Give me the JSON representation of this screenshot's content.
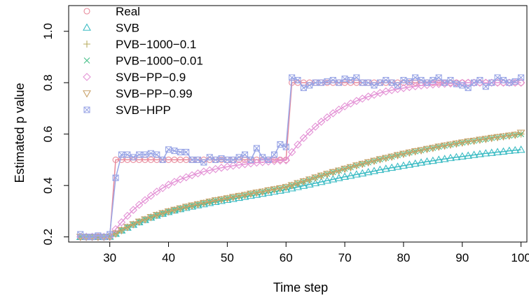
{
  "chart_data": {
    "type": "line",
    "title": "",
    "xlabel": "Time step",
    "ylabel": "Estimated p value",
    "xlim": [
      23,
      101
    ],
    "ylim": [
      0.18,
      1.1
    ],
    "xticks": [
      30,
      40,
      50,
      60,
      70,
      80,
      90,
      100
    ],
    "yticks": [
      0.2,
      0.4,
      0.6,
      0.8,
      1.0
    ],
    "ytick_labels": [
      "0.2",
      "0.4",
      "0.6",
      "0.8",
      "1.0"
    ],
    "grid": false,
    "legend_position": "top-left",
    "x": [
      25,
      26,
      27,
      28,
      29,
      30,
      31,
      32,
      33,
      34,
      35,
      36,
      37,
      38,
      39,
      40,
      41,
      42,
      43,
      44,
      45,
      46,
      47,
      48,
      49,
      50,
      51,
      52,
      53,
      54,
      55,
      56,
      57,
      58,
      59,
      60,
      61,
      62,
      63,
      64,
      65,
      66,
      67,
      68,
      69,
      70,
      71,
      72,
      73,
      74,
      75,
      76,
      77,
      78,
      79,
      80,
      81,
      82,
      83,
      84,
      85,
      86,
      87,
      88,
      89,
      90,
      91,
      92,
      93,
      94,
      95,
      96,
      97,
      98,
      99,
      100
    ],
    "series": [
      {
        "name": "Real",
        "marker": "circle",
        "color": "#e8899a",
        "values": [
          0.2,
          0.2,
          0.2,
          0.2,
          0.2,
          0.2,
          0.5,
          0.5,
          0.5,
          0.5,
          0.5,
          0.5,
          0.5,
          0.5,
          0.5,
          0.5,
          0.5,
          0.5,
          0.5,
          0.5,
          0.5,
          0.5,
          0.5,
          0.5,
          0.5,
          0.5,
          0.5,
          0.5,
          0.5,
          0.5,
          0.5,
          0.5,
          0.5,
          0.5,
          0.5,
          0.5,
          0.8,
          0.8,
          0.8,
          0.8,
          0.8,
          0.8,
          0.8,
          0.8,
          0.8,
          0.8,
          0.8,
          0.8,
          0.8,
          0.8,
          0.8,
          0.8,
          0.8,
          0.8,
          0.8,
          0.8,
          0.8,
          0.8,
          0.8,
          0.8,
          0.8,
          0.8,
          0.8,
          0.8,
          0.8,
          0.8,
          0.8,
          0.8,
          0.8,
          0.8,
          0.8,
          0.8,
          0.8,
          0.8,
          0.8,
          0.8
        ]
      },
      {
        "name": "SVB",
        "marker": "triangle-up",
        "color": "#3cbcc4",
        "values": [
          0.2,
          0.2,
          0.2,
          0.2,
          0.2,
          0.201,
          0.212,
          0.225,
          0.236,
          0.247,
          0.257,
          0.266,
          0.275,
          0.283,
          0.29,
          0.297,
          0.303,
          0.308,
          0.313,
          0.318,
          0.323,
          0.327,
          0.332,
          0.336,
          0.34,
          0.344,
          0.348,
          0.352,
          0.356,
          0.36,
          0.364,
          0.368,
          0.372,
          0.376,
          0.38,
          0.384,
          0.389,
          0.394,
          0.399,
          0.404,
          0.409,
          0.414,
          0.419,
          0.424,
          0.429,
          0.434,
          0.438,
          0.443,
          0.447,
          0.452,
          0.456,
          0.461,
          0.465,
          0.469,
          0.473,
          0.477,
          0.481,
          0.485,
          0.489,
          0.493,
          0.496,
          0.5,
          0.503,
          0.507,
          0.51,
          0.513,
          0.516,
          0.519,
          0.522,
          0.525,
          0.527,
          0.53,
          0.532,
          0.535,
          0.537,
          0.539
        ]
      },
      {
        "name": "PVB−1000−0.1",
        "marker": "plus",
        "color": "#b8ad62",
        "values": [
          0.2,
          0.2,
          0.2,
          0.2,
          0.2,
          0.201,
          0.213,
          0.226,
          0.238,
          0.249,
          0.259,
          0.268,
          0.277,
          0.285,
          0.292,
          0.299,
          0.305,
          0.311,
          0.317,
          0.322,
          0.327,
          0.332,
          0.337,
          0.342,
          0.346,
          0.35,
          0.355,
          0.359,
          0.363,
          0.368,
          0.372,
          0.376,
          0.381,
          0.385,
          0.389,
          0.394,
          0.401,
          0.409,
          0.416,
          0.423,
          0.431,
          0.438,
          0.445,
          0.452,
          0.458,
          0.465,
          0.471,
          0.478,
          0.484,
          0.49,
          0.496,
          0.502,
          0.507,
          0.512,
          0.518,
          0.523,
          0.528,
          0.533,
          0.537,
          0.542,
          0.546,
          0.551,
          0.555,
          0.559,
          0.563,
          0.567,
          0.571,
          0.574,
          0.578,
          0.581,
          0.585,
          0.588,
          0.591,
          0.594,
          0.597,
          0.6
        ]
      },
      {
        "name": "PVB−1000−0.01",
        "marker": "cross",
        "color": "#48c08a",
        "values": [
          0.2,
          0.2,
          0.2,
          0.2,
          0.2,
          0.201,
          0.213,
          0.226,
          0.238,
          0.249,
          0.259,
          0.268,
          0.277,
          0.285,
          0.292,
          0.299,
          0.305,
          0.311,
          0.317,
          0.322,
          0.327,
          0.332,
          0.337,
          0.342,
          0.346,
          0.35,
          0.355,
          0.359,
          0.363,
          0.368,
          0.372,
          0.376,
          0.381,
          0.385,
          0.389,
          0.394,
          0.401,
          0.409,
          0.416,
          0.423,
          0.431,
          0.438,
          0.445,
          0.452,
          0.458,
          0.465,
          0.471,
          0.478,
          0.484,
          0.49,
          0.496,
          0.502,
          0.507,
          0.512,
          0.518,
          0.523,
          0.528,
          0.533,
          0.537,
          0.542,
          0.546,
          0.551,
          0.555,
          0.559,
          0.563,
          0.567,
          0.571,
          0.574,
          0.578,
          0.581,
          0.585,
          0.588,
          0.591,
          0.594,
          0.597,
          0.6
        ]
      },
      {
        "name": "SVB−PP−0.9",
        "marker": "diamond",
        "color": "#e493d6",
        "values": [
          0.2,
          0.2,
          0.2,
          0.2,
          0.2,
          0.2,
          0.23,
          0.257,
          0.282,
          0.305,
          0.325,
          0.343,
          0.36,
          0.376,
          0.39,
          0.403,
          0.414,
          0.424,
          0.432,
          0.44,
          0.447,
          0.454,
          0.459,
          0.464,
          0.469,
          0.473,
          0.477,
          0.48,
          0.483,
          0.486,
          0.489,
          0.491,
          0.493,
          0.495,
          0.497,
          0.498,
          0.53,
          0.559,
          0.585,
          0.608,
          0.629,
          0.648,
          0.665,
          0.681,
          0.695,
          0.708,
          0.719,
          0.729,
          0.738,
          0.746,
          0.753,
          0.76,
          0.766,
          0.771,
          0.775,
          0.779,
          0.783,
          0.786,
          0.789,
          0.791,
          0.793,
          0.795,
          0.796,
          0.797,
          0.798,
          0.799,
          0.8,
          0.8,
          0.8,
          0.8,
          0.8,
          0.8,
          0.8,
          0.8,
          0.8,
          0.8
        ]
      },
      {
        "name": "SVB−PP−0.99",
        "marker": "triangle-down",
        "color": "#c9a26a",
        "values": [
          0.2,
          0.2,
          0.2,
          0.2,
          0.2,
          0.201,
          0.213,
          0.226,
          0.238,
          0.249,
          0.259,
          0.268,
          0.277,
          0.285,
          0.292,
          0.299,
          0.305,
          0.311,
          0.317,
          0.322,
          0.327,
          0.332,
          0.337,
          0.342,
          0.346,
          0.35,
          0.355,
          0.359,
          0.363,
          0.368,
          0.372,
          0.376,
          0.381,
          0.385,
          0.389,
          0.394,
          0.401,
          0.409,
          0.416,
          0.423,
          0.431,
          0.438,
          0.445,
          0.452,
          0.458,
          0.465,
          0.471,
          0.478,
          0.484,
          0.49,
          0.496,
          0.502,
          0.507,
          0.512,
          0.518,
          0.523,
          0.528,
          0.533,
          0.537,
          0.542,
          0.546,
          0.551,
          0.555,
          0.559,
          0.563,
          0.567,
          0.571,
          0.574,
          0.578,
          0.581,
          0.585,
          0.588,
          0.591,
          0.594,
          0.597,
          0.605
        ]
      },
      {
        "name": "SVB−HPP",
        "marker": "square-cross",
        "color": "#9aa6e6",
        "values": [
          0.21,
          0.2,
          0.2,
          0.205,
          0.2,
          0.21,
          0.43,
          0.52,
          0.52,
          0.51,
          0.52,
          0.52,
          0.525,
          0.52,
          0.5,
          0.54,
          0.535,
          0.53,
          0.53,
          0.5,
          0.5,
          0.49,
          0.51,
          0.5,
          0.505,
          0.5,
          0.5,
          0.51,
          0.52,
          0.5,
          0.545,
          0.51,
          0.5,
          0.52,
          0.56,
          0.55,
          0.82,
          0.81,
          0.78,
          0.79,
          0.8,
          0.8,
          0.805,
          0.81,
          0.8,
          0.815,
          0.81,
          0.82,
          0.8,
          0.8,
          0.79,
          0.8,
          0.81,
          0.8,
          0.79,
          0.81,
          0.805,
          0.82,
          0.81,
          0.8,
          0.81,
          0.82,
          0.8,
          0.81,
          0.795,
          0.79,
          0.78,
          0.8,
          0.81,
          0.785,
          0.8,
          0.82,
          0.81,
          0.8,
          0.805,
          0.82
        ]
      }
    ]
  }
}
